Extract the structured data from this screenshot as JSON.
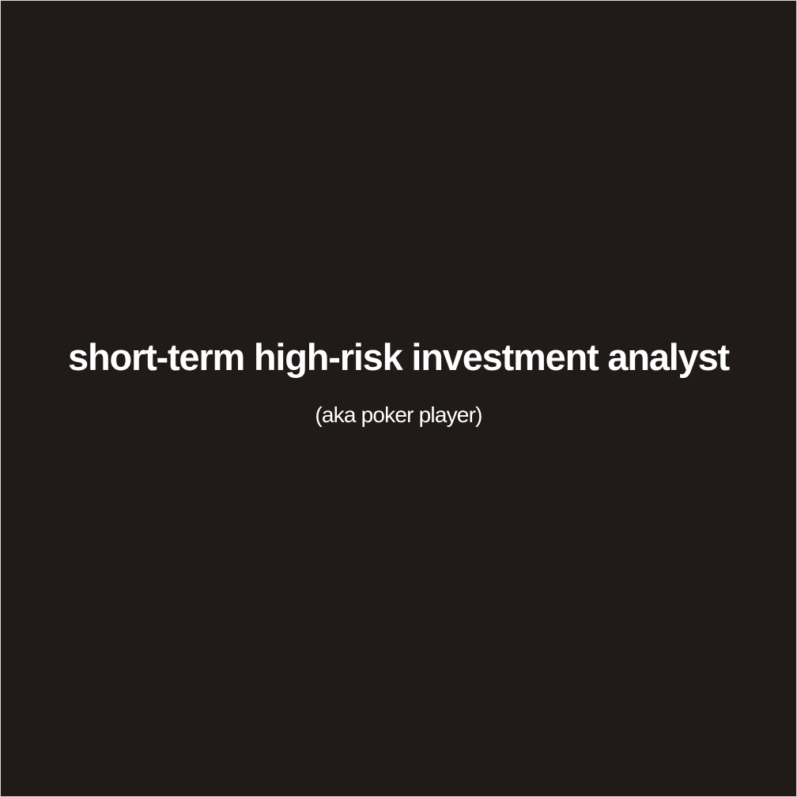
{
  "poster": {
    "headline": "short-term high-risk investment analyst",
    "subline": "(aka poker player)"
  },
  "colors": {
    "background": "#201b19",
    "text": "#ffffff",
    "frame": "#d9d9d9"
  }
}
